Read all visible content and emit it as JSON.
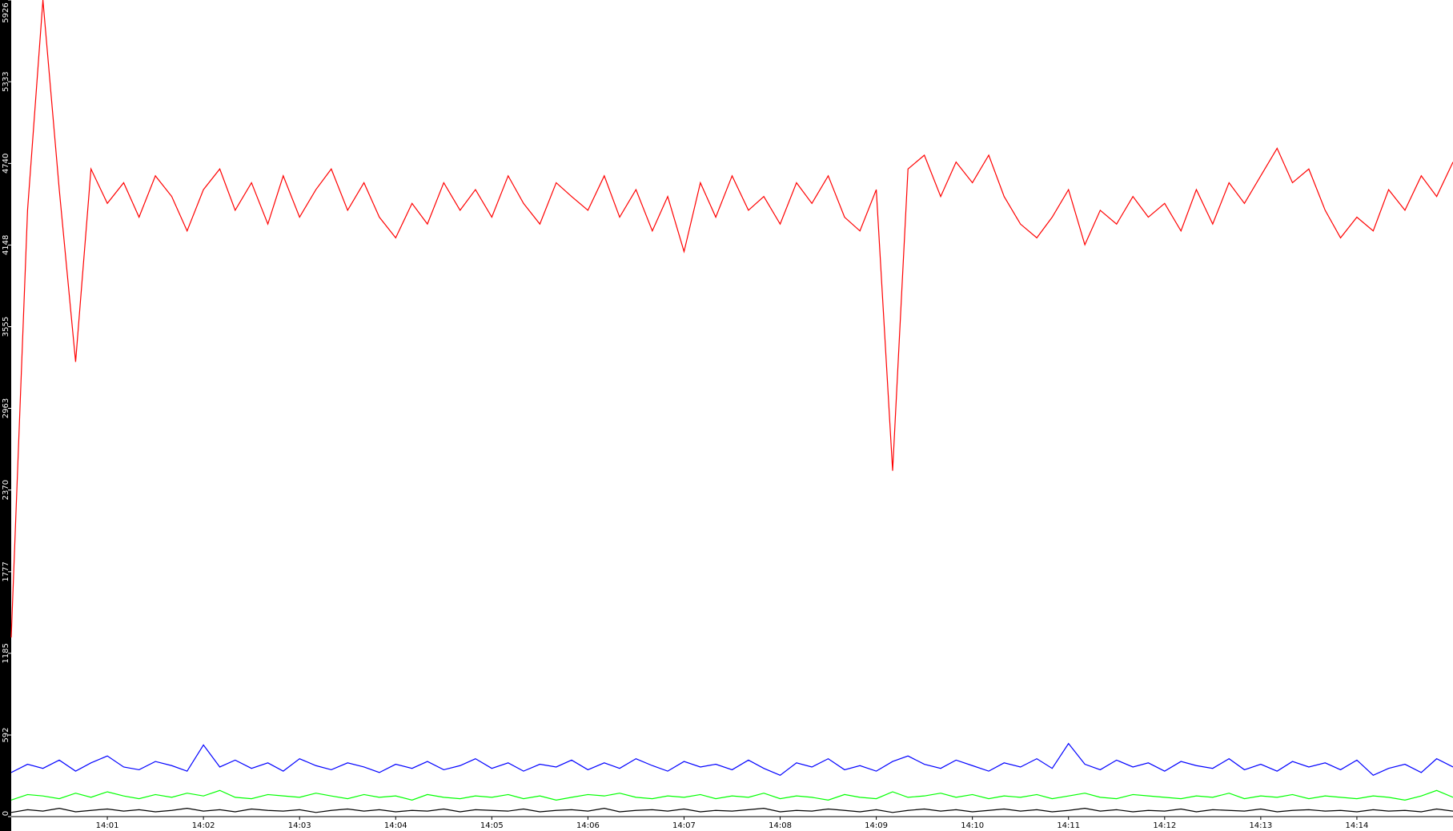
{
  "chart_data": {
    "type": "line",
    "x": [
      840,
      840.17,
      840.33,
      840.5,
      840.67,
      840.83,
      841,
      841.17,
      841.33,
      841.5,
      841.67,
      841.83,
      842,
      842.17,
      842.33,
      842.5,
      842.67,
      842.83,
      843,
      843.17,
      843.33,
      843.5,
      843.67,
      843.83,
      844,
      844.17,
      844.33,
      844.5,
      844.67,
      844.83,
      845,
      845.17,
      845.33,
      845.5,
      845.67,
      845.83,
      846,
      846.17,
      846.33,
      846.5,
      846.67,
      846.83,
      847,
      847.17,
      847.33,
      847.5,
      847.67,
      847.83,
      848,
      848.17,
      848.33,
      848.5,
      848.67,
      848.83,
      849,
      849.17,
      849.33,
      849.5,
      849.67,
      849.83,
      850,
      850.17,
      850.33,
      850.5,
      850.67,
      850.83,
      851,
      851.17,
      851.33,
      851.5,
      851.67,
      851.83,
      852,
      852.17,
      852.33,
      852.5,
      852.67,
      852.83,
      853,
      853.17,
      853.33,
      853.5,
      853.67,
      853.83,
      854,
      854.17,
      854.33,
      854.5,
      854.67,
      854.83,
      855
    ],
    "series": [
      {
        "color": "#ff0000",
        "values": [
          1300,
          4400,
          5926,
          4550,
          3300,
          4700,
          4450,
          4600,
          4350,
          4650,
          4500,
          4250,
          4550,
          4700,
          4400,
          4600,
          4300,
          4650,
          4350,
          4550,
          4700,
          4400,
          4600,
          4350,
          4200,
          4450,
          4300,
          4600,
          4400,
          4550,
          4350,
          4650,
          4450,
          4300,
          4600,
          4500,
          4400,
          4650,
          4350,
          4550,
          4250,
          4500,
          4100,
          4600,
          4350,
          4650,
          4400,
          4500,
          4300,
          4600,
          4450,
          4650,
          4350,
          4250,
          4550,
          2510,
          4700,
          4800,
          4500,
          4750,
          4600,
          4800,
          4500,
          4300,
          4200,
          4350,
          4550,
          4150,
          4400,
          4300,
          4500,
          4350,
          4450,
          4250,
          4550,
          4300,
          4600,
          4450,
          4650,
          4850,
          4600,
          4700,
          4400,
          4200,
          4350,
          4250,
          4550,
          4400,
          4650,
          4500,
          4750
        ]
      },
      {
        "color": "#0000ff",
        "values": [
          320,
          380,
          350,
          410,
          330,
          390,
          440,
          360,
          340,
          400,
          370,
          330,
          520,
          360,
          410,
          350,
          390,
          330,
          420,
          370,
          340,
          390,
          360,
          320,
          380,
          350,
          400,
          340,
          370,
          420,
          350,
          390,
          330,
          380,
          360,
          410,
          340,
          390,
          350,
          420,
          370,
          330,
          400,
          360,
          380,
          340,
          410,
          350,
          300,
          390,
          360,
          420,
          340,
          370,
          330,
          400,
          440,
          380,
          350,
          410,
          370,
          330,
          390,
          360,
          420,
          350,
          530,
          380,
          340,
          410,
          360,
          390,
          330,
          400,
          370,
          350,
          420,
          340,
          380,
          330,
          400,
          360,
          390,
          340,
          410,
          300,
          350,
          380,
          320,
          420,
          360
        ]
      },
      {
        "color": "#00ff00",
        "values": [
          120,
          160,
          150,
          130,
          170,
          140,
          180,
          150,
          130,
          160,
          140,
          170,
          150,
          190,
          140,
          130,
          160,
          150,
          140,
          170,
          150,
          130,
          160,
          140,
          150,
          120,
          160,
          140,
          130,
          150,
          140,
          160,
          130,
          150,
          120,
          140,
          160,
          150,
          170,
          140,
          130,
          150,
          140,
          160,
          130,
          150,
          140,
          170,
          130,
          150,
          140,
          120,
          160,
          140,
          130,
          180,
          140,
          150,
          170,
          140,
          160,
          130,
          150,
          140,
          160,
          130,
          150,
          170,
          140,
          130,
          160,
          150,
          140,
          130,
          150,
          140,
          170,
          130,
          150,
          140,
          160,
          130,
          150,
          140,
          130,
          150,
          140,
          120,
          150,
          190,
          140
        ]
      },
      {
        "color": "#000000",
        "values": [
          30,
          50,
          40,
          60,
          35,
          45,
          55,
          40,
          50,
          35,
          45,
          60,
          40,
          50,
          35,
          55,
          45,
          40,
          50,
          30,
          45,
          55,
          40,
          50,
          35,
          45,
          40,
          55,
          35,
          50,
          45,
          40,
          55,
          35,
          45,
          50,
          40,
          60,
          35,
          45,
          50,
          40,
          55,
          35,
          45,
          40,
          50,
          60,
          35,
          45,
          40,
          55,
          45,
          35,
          50,
          30,
          45,
          55,
          40,
          50,
          35,
          45,
          55,
          40,
          50,
          35,
          45,
          60,
          40,
          50,
          35,
          45,
          40,
          55,
          35,
          50,
          45,
          40,
          55,
          35,
          45,
          50,
          40,
          45,
          35,
          50,
          40,
          45,
          35,
          55,
          40
        ]
      }
    ],
    "xlim": [
      840,
      855
    ],
    "xticks": [
      {
        "value": 841,
        "label": "14:01"
      },
      {
        "value": 842,
        "label": "14:02"
      },
      {
        "value": 843,
        "label": "14:03"
      },
      {
        "value": 844,
        "label": "14:04"
      },
      {
        "value": 845,
        "label": "14:05"
      },
      {
        "value": 846,
        "label": "14:06"
      },
      {
        "value": 847,
        "label": "14:07"
      },
      {
        "value": 848,
        "label": "14:08"
      },
      {
        "value": 849,
        "label": "14:09"
      },
      {
        "value": 850,
        "label": "14:10"
      },
      {
        "value": 851,
        "label": "14:11"
      },
      {
        "value": 852,
        "label": "14:12"
      },
      {
        "value": 853,
        "label": "14:13"
      },
      {
        "value": 854,
        "label": "14:14"
      }
    ],
    "ylim": [
      0,
      5926
    ],
    "yticks": [
      0,
      592,
      1185,
      1777,
      2370,
      2963,
      3555,
      4148,
      4740,
      5333,
      5926
    ]
  }
}
